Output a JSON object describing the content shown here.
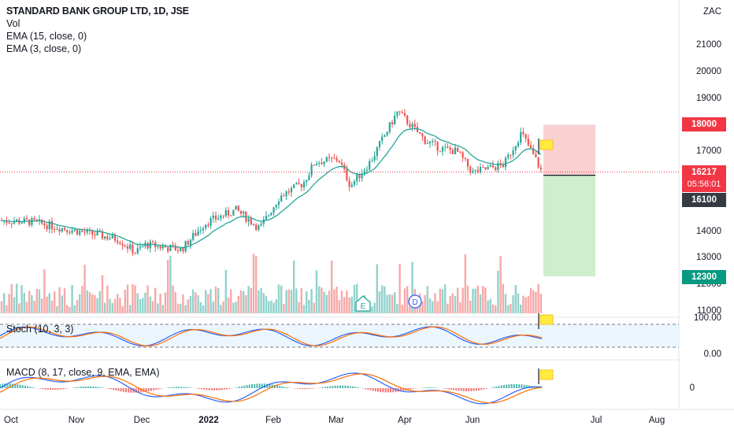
{
  "legend": {
    "title": "STANDARD BANK GROUP LTD, 1D, JSE",
    "vol": "Vol",
    "ema1": "EMA (15, close, 0)",
    "ema2": "EMA (3, close, 0)",
    "stoch": "Stoch (10, 3, 3)",
    "macd": "MACD (8, 17, close, 9, EMA, EMA)"
  },
  "price_axis": {
    "currency": "ZAC",
    "ticks": [
      "21000",
      "20000",
      "19000",
      "17000",
      "14000",
      "13000",
      "12000",
      "11000"
    ],
    "tick_values": [
      21000,
      20000,
      19000,
      17000,
      14000,
      13000,
      12000,
      11000
    ]
  },
  "price_tags": {
    "target": "18000",
    "current": "16217",
    "countdown": "05:56:01",
    "entry": "16100",
    "stop": "12300"
  },
  "stoch_axis": {
    "ticks": [
      "100.00",
      "0.00"
    ]
  },
  "macd_axis": {
    "ticks": [
      "0"
    ]
  },
  "time_axis": {
    "labels": [
      "Oct",
      "Nov",
      "Dec",
      "2022",
      "Feb",
      "Mar",
      "Apr",
      "Jun",
      "Jul",
      "Aug"
    ]
  },
  "markers": {
    "earnings": "E",
    "dividend": "D"
  },
  "colors": {
    "up": "#26a69a",
    "down": "#ef5350",
    "ema": "#26a69a",
    "target_zone": "#f7c5c5",
    "stop_zone": "#c9ecc6",
    "macd_line": "#2962ff",
    "signal_line": "#ff6d00"
  },
  "chart_data": {
    "type": "line",
    "title": "STANDARD BANK GROUP LTD, 1D, JSE",
    "ylabel": "ZAC",
    "ylim": [
      11000,
      22000
    ],
    "x": [
      "Oct",
      "Nov",
      "Dec",
      "2022",
      "Feb",
      "Mar",
      "Apr",
      "Jun"
    ],
    "series": [
      {
        "name": "Close",
        "values": [
          14400,
          13900,
          13200,
          14800,
          16000,
          16800,
          18500,
          16217
        ]
      }
    ],
    "position": {
      "entry": 16100,
      "target": 18000,
      "stop": 12300
    }
  }
}
